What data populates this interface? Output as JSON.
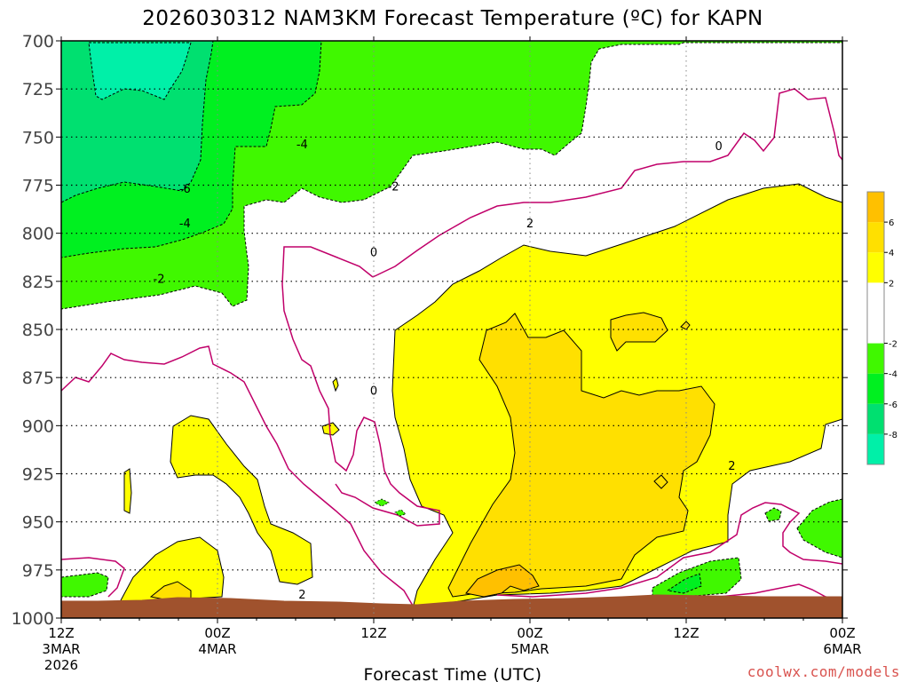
{
  "chart_data": {
    "type": "heatmap",
    "title": "2026030312 NAM3KM Forecast Temperature (ºC) for KAPN",
    "xlabel": "Forecast Time (UTC)",
    "ylabel": "",
    "credit": "coolwx.com/models",
    "y_ticks": [
      "700",
      "725",
      "750",
      "775",
      "800",
      "825",
      "850",
      "875",
      "900",
      "925",
      "950",
      "975",
      "1000"
    ],
    "ylim": [
      1000,
      700
    ],
    "x_ticks": [
      {
        "hour": 0,
        "line1": "12Z",
        "line2": "3MAR",
        "line3": "2026"
      },
      {
        "hour": 12,
        "line1": "00Z",
        "line2": "4MAR",
        "line3": ""
      },
      {
        "hour": 24,
        "line1": "12Z",
        "line2": "",
        "line3": ""
      },
      {
        "hour": 36,
        "line1": "00Z",
        "line2": "5MAR",
        "line3": ""
      },
      {
        "hour": 48,
        "line1": "12Z",
        "line2": "",
        "line3": ""
      },
      {
        "hour": 60,
        "line1": "00Z",
        "line2": "6MAR",
        "line3": ""
      }
    ],
    "xlim": [
      0,
      60
    ],
    "grid": true,
    "contour_labels": [
      {
        "text": "-4",
        "hour": 18.5,
        "p": 754
      },
      {
        "text": "-6",
        "hour": 9.5,
        "p": 777
      },
      {
        "text": "-4",
        "hour": 9.5,
        "p": 795
      },
      {
        "text": "-2",
        "hour": 7.5,
        "p": 824
      },
      {
        "text": "-2",
        "hour": 25.5,
        "p": 776
      },
      {
        "text": "0",
        "hour": 50.5,
        "p": 755
      },
      {
        "text": "0",
        "hour": 24.0,
        "p": 810
      },
      {
        "text": "2",
        "hour": 36.0,
        "p": 795
      },
      {
        "text": "0",
        "hour": 24.0,
        "p": 882
      },
      {
        "text": "2",
        "hour": 51.5,
        "p": 921
      },
      {
        "text": "2",
        "hour": 18.5,
        "p": 988
      }
    ],
    "colorbar": {
      "levels": [
        -10,
        -8,
        -6,
        -4,
        -2,
        2,
        4,
        6,
        8
      ],
      "tick_labels": [
        "6",
        "4",
        "2",
        "-2",
        "-4",
        "-6",
        "-8"
      ],
      "tick_values": [
        6,
        4,
        2,
        -2,
        -4,
        -6,
        -8
      ],
      "colors": [
        "#00f0a8",
        "#00e070",
        "#00f020",
        "#40f800",
        "#ffffff",
        "#ffff00",
        "#ffe000",
        "#ffc000"
      ]
    }
  }
}
